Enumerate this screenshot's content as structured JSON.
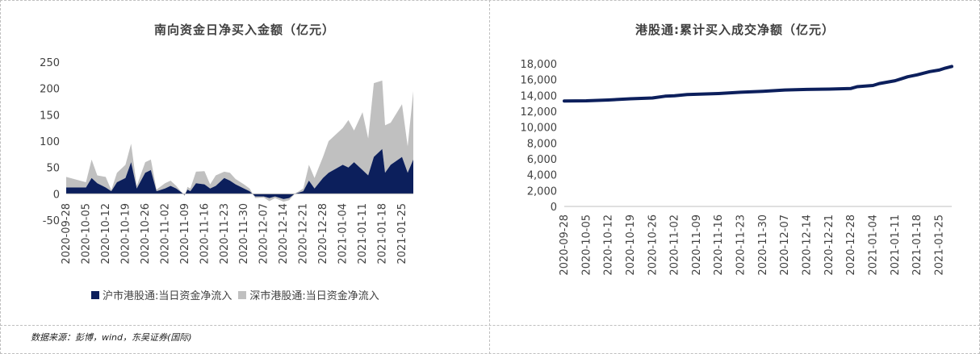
{
  "source_note": "数据来源：彭博，wind，东吴证券(国际)",
  "chart_data": [
    {
      "type": "area",
      "title": "南向资金日净买入金额（亿元）",
      "ylim": [
        -50,
        250
      ],
      "yticks": [
        -50,
        0,
        50,
        100,
        150,
        200,
        250
      ],
      "xtick_labels": [
        "2020-09-28",
        "2020-10-05",
        "2020-10-12",
        "2020-10-19",
        "2020-10-26",
        "2020-11-02",
        "2020-11-09",
        "2020-11-16",
        "2020-11-23",
        "2020-11-30",
        "2020-12-07",
        "2020-12-14",
        "2020-12-21",
        "2020-12-28",
        "2021-01-04",
        "2021-01-11",
        "2021-01-18",
        "2021-01-25"
      ],
      "stacked": true,
      "legend_position": "bottom",
      "grid": false,
      "x": [
        "2020-09-28",
        "2020-10-05",
        "2020-10-07",
        "2020-10-09",
        "2020-10-12",
        "2020-10-14",
        "2020-10-16",
        "2020-10-19",
        "2020-10-21",
        "2020-10-23",
        "2020-10-26",
        "2020-10-28",
        "2020-10-30",
        "2020-11-02",
        "2020-11-04",
        "2020-11-06",
        "2020-11-09",
        "2020-11-10",
        "2020-11-11",
        "2020-11-13",
        "2020-11-16",
        "2020-11-18",
        "2020-11-20",
        "2020-11-23",
        "2020-11-25",
        "2020-11-27",
        "2020-11-30",
        "2020-12-02",
        "2020-12-04",
        "2020-12-07",
        "2020-12-09",
        "2020-12-11",
        "2020-12-14",
        "2020-12-16",
        "2020-12-18",
        "2020-12-21",
        "2020-12-23",
        "2020-12-25",
        "2020-12-28",
        "2020-12-30",
        "2021-01-04",
        "2021-01-06",
        "2021-01-08",
        "2021-01-11",
        "2021-01-13",
        "2021-01-15",
        "2021-01-18",
        "2021-01-19",
        "2021-01-21",
        "2021-01-25",
        "2021-01-27",
        "2021-01-29"
      ],
      "series": [
        {
          "name": "沪市港股通:当日资金净流入",
          "color": "#0c1f5c",
          "values": [
            12,
            12,
            30,
            20,
            12,
            5,
            22,
            30,
            60,
            10,
            40,
            45,
            5,
            10,
            15,
            10,
            -2,
            8,
            5,
            20,
            18,
            10,
            15,
            30,
            25,
            18,
            10,
            5,
            -5,
            -5,
            -8,
            -5,
            -10,
            -8,
            0,
            5,
            25,
            10,
            30,
            40,
            55,
            50,
            60,
            45,
            35,
            70,
            85,
            40,
            55,
            70,
            40,
            65
          ]
        },
        {
          "name": "深市港股通:当日资金净流入",
          "color": "#c0c0c0",
          "values": [
            20,
            10,
            35,
            15,
            20,
            2,
            18,
            25,
            35,
            5,
            20,
            20,
            3,
            10,
            10,
            5,
            -2,
            5,
            5,
            22,
            25,
            8,
            20,
            12,
            15,
            10,
            8,
            5,
            -3,
            -2,
            -6,
            -3,
            -5,
            -4,
            0,
            5,
            30,
            20,
            40,
            60,
            70,
            90,
            60,
            110,
            70,
            140,
            130,
            90,
            80,
            100,
            50,
            130
          ]
        }
      ]
    },
    {
      "type": "line",
      "title": "港股通:累计买入成交净额（亿元）",
      "ylim": [
        0,
        18000
      ],
      "yticks": [
        "0",
        "2,000",
        "4,000",
        "6,000",
        "8,000",
        "10,000",
        "12,000",
        "14,000",
        "16,000",
        "18,000"
      ],
      "xtick_labels": [
        "2020-09-28",
        "2020-10-05",
        "2020-10-12",
        "2020-10-19",
        "2020-10-26",
        "2020-11-02",
        "2020-11-09",
        "2020-11-16",
        "2020-11-23",
        "2020-11-30",
        "2020-12-07",
        "2020-12-14",
        "2020-12-21",
        "2020-12-28",
        "2021-01-04",
        "2021-01-11",
        "2021-01-18",
        "2021-01-25"
      ],
      "grid": false,
      "series": [
        {
          "color": "#0c1f5c",
          "x": [
            "2020-09-28",
            "2020-10-05",
            "2020-10-12",
            "2020-10-19",
            "2020-10-26",
            "2020-10-30",
            "2020-11-02",
            "2020-11-06",
            "2020-11-09",
            "2020-11-16",
            "2020-11-23",
            "2020-11-30",
            "2020-12-07",
            "2020-12-14",
            "2020-12-21",
            "2020-12-28",
            "2020-12-30",
            "2021-01-04",
            "2021-01-06",
            "2021-01-11",
            "2021-01-13",
            "2021-01-15",
            "2021-01-18",
            "2021-01-20",
            "2021-01-22",
            "2021-01-25",
            "2021-01-27",
            "2021-01-29"
          ],
          "values": [
            13300,
            13320,
            13420,
            13580,
            13680,
            13900,
            13960,
            14100,
            14150,
            14240,
            14400,
            14520,
            14680,
            14760,
            14800,
            14880,
            15100,
            15250,
            15500,
            15850,
            16100,
            16350,
            16600,
            16800,
            17000,
            17200,
            17450,
            17650
          ]
        }
      ]
    }
  ]
}
